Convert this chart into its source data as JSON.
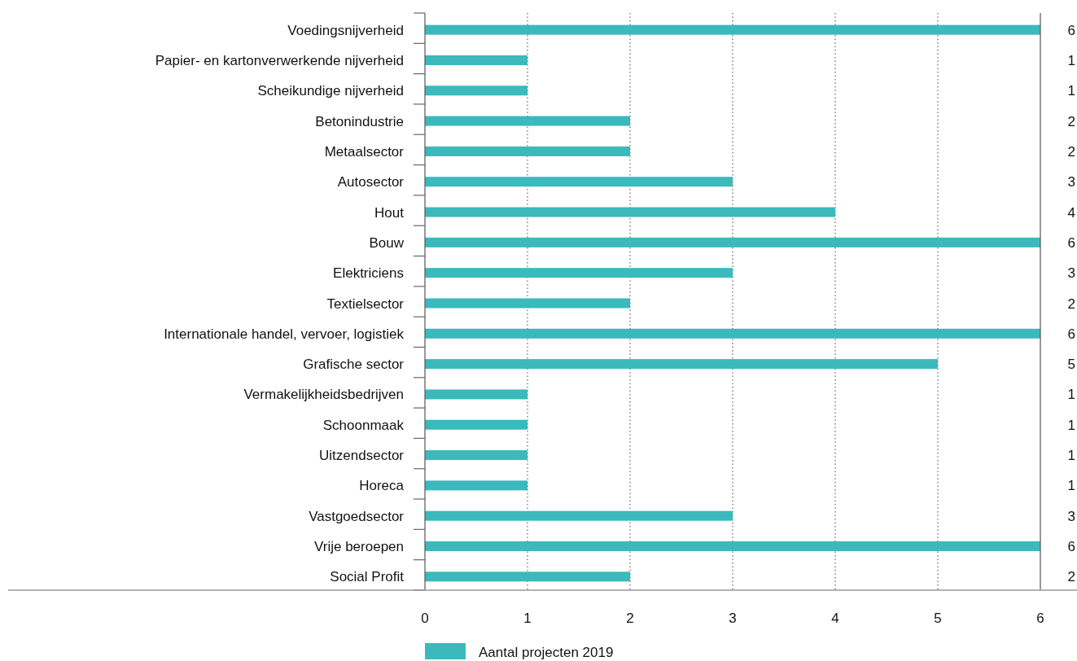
{
  "chart_data": {
    "type": "bar",
    "orientation": "horizontal",
    "categories": [
      "Voedingsnijverheid",
      "Papier- en kartonverwerkende nijverheid",
      "Scheikundige nijverheid",
      "Betonindustrie",
      "Metaalsector",
      "Autosector",
      "Hout",
      "Bouw",
      "Elektriciens",
      "Textielsector",
      "Internationale handel, vervoer, logistiek",
      "Grafische sector",
      "Vermakelijkheidsbedrijven",
      "Schoonmaak",
      "Uitzendsector",
      "Horeca",
      "Vastgoedsector",
      "Vrije beroepen",
      "Social Profit"
    ],
    "series": [
      {
        "name": "Aantal projecten 2019",
        "color": "#3bb9bd",
        "values": [
          6,
          1,
          1,
          2,
          2,
          3,
          4,
          6,
          3,
          2,
          6,
          5,
          1,
          1,
          1,
          1,
          3,
          6,
          2
        ]
      }
    ],
    "xlim": [
      0,
      6
    ],
    "xticks": [
      0,
      1,
      2,
      3,
      4,
      5,
      6
    ],
    "grid": "x",
    "legend": "bottom",
    "data_labels": true
  }
}
